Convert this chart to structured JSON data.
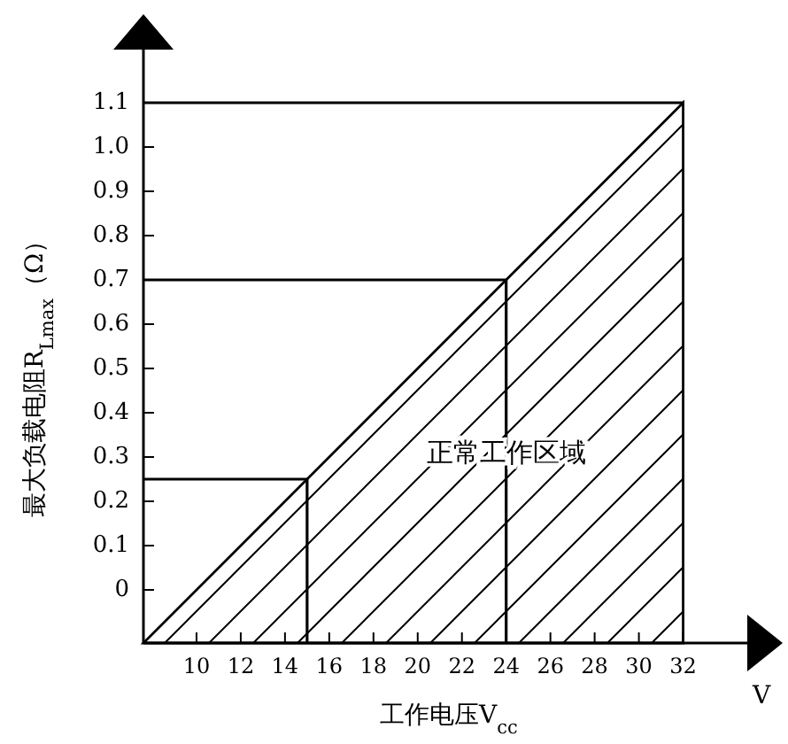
{
  "chart_data": {
    "type": "line",
    "xlabel": "工作电压V$_{cc}$",
    "ylabel": "最大负载电阻R$_{Lmax}$（Ω）",
    "xlim": [
      7.6,
      34.9
    ],
    "ylim": [
      -0.12,
      1.22
    ],
    "xticks": [
      10,
      12,
      14,
      16,
      18,
      20,
      22,
      24,
      26,
      28,
      30,
      32
    ],
    "yticks": [
      {
        "value": 0,
        "label": "0"
      },
      0.1,
      0.2,
      0.3,
      0.4,
      0.5,
      0.6,
      0.7,
      0.8,
      0.9,
      {
        "value": 1,
        "label": "1.0"
      },
      1.1
    ],
    "grid": false,
    "series": [
      {
        "type": "area",
        "color": "#000000",
        "x": [
          7.6,
          32
        ],
        "values": [
          -0.12,
          1.1
        ]
      },
      {
        "type": "line",
        "color": "#000000",
        "x": [
          7.6,
          15,
          15
        ],
        "values": [
          0.25,
          0.25,
          -0.12
        ]
      },
      {
        "type": "line",
        "color": "#000000",
        "x": [
          7.6,
          24,
          24
        ],
        "values": [
          0.7,
          0.7,
          -0.12
        ]
      },
      {
        "type": "line",
        "color": "#000000",
        "x": [
          7.6,
          32
        ],
        "values": [
          1.1,
          1.1
        ]
      }
    ],
    "annotations": [
      {
        "text": "正常工作区域",
        "x": 24,
        "y": 0.31
      },
      "V"
    ]
  }
}
